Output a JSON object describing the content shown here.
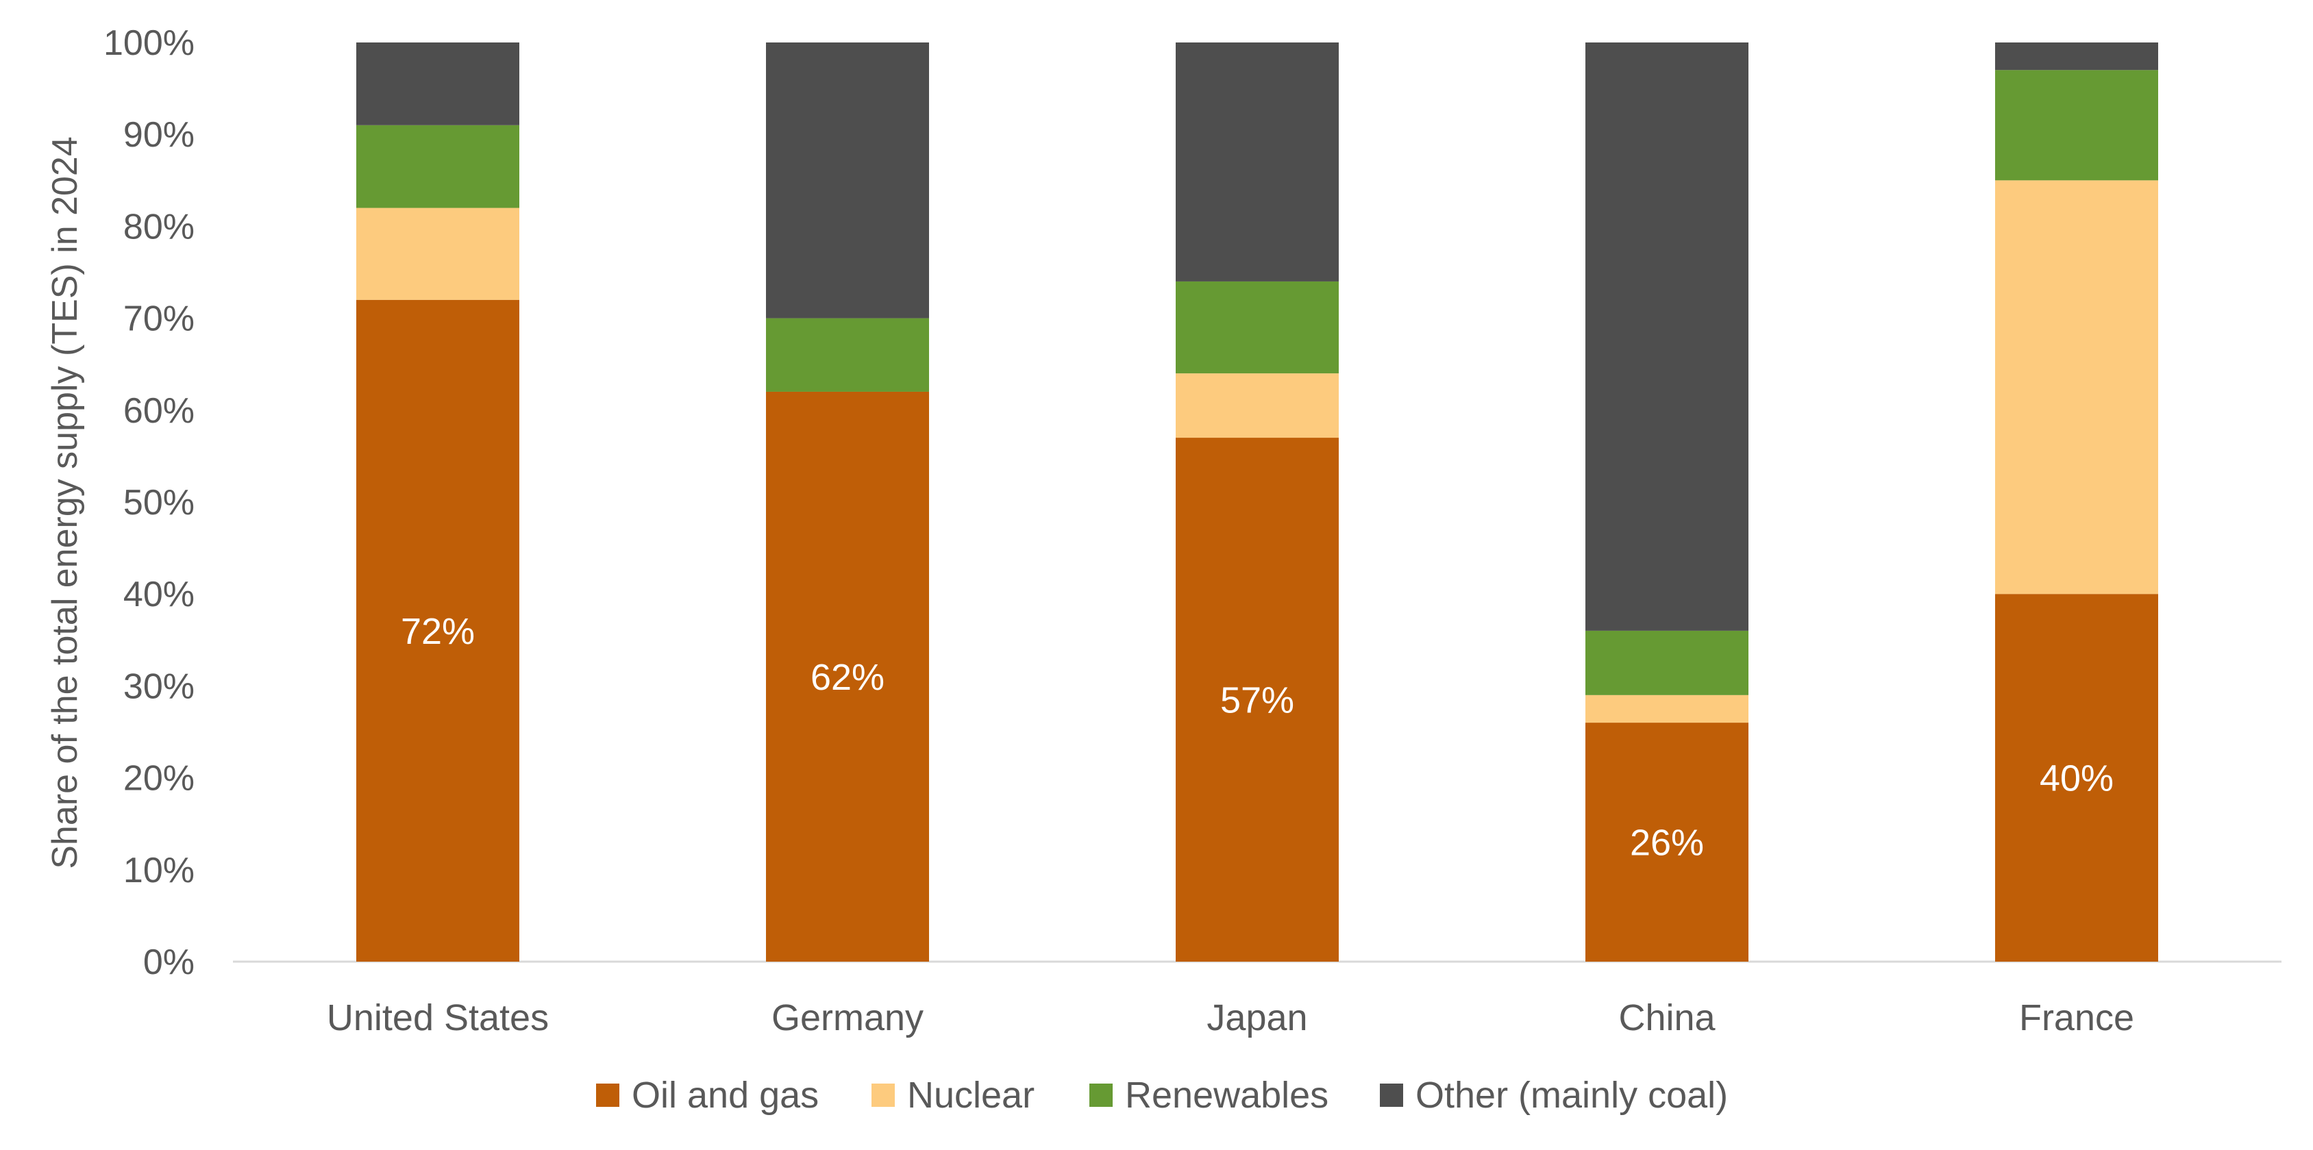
{
  "chart_data": {
    "type": "bar",
    "stacked": true,
    "categories": [
      "United States",
      "Germany",
      "Japan",
      "China",
      "France"
    ],
    "series": [
      {
        "name": "Oil and gas",
        "color": "#BF5E07",
        "values": [
          72,
          62,
          57,
          26,
          40
        ]
      },
      {
        "name": "Nuclear",
        "color": "#FDCB7E",
        "values": [
          10,
          0,
          7,
          3,
          45
        ]
      },
      {
        "name": "Renewables",
        "color": "#669A33",
        "values": [
          9,
          8,
          10,
          7,
          12
        ]
      },
      {
        "name": "Other (mainly coal)",
        "color": "#4E4E4E",
        "values": [
          9,
          30,
          26,
          64,
          3
        ]
      }
    ],
    "data_labels": [
      "72%",
      "62%",
      "57%",
      "26%",
      "40%"
    ],
    "ylabel": "Share of the total energy supply (TES) in 2024",
    "xlabel": "",
    "ylim": [
      0,
      100
    ],
    "yticks": [
      "0%",
      "10%",
      "20%",
      "30%",
      "40%",
      "50%",
      "60%",
      "70%",
      "80%",
      "90%",
      "100%"
    ],
    "grid": false,
    "legend_position": "bottom"
  }
}
